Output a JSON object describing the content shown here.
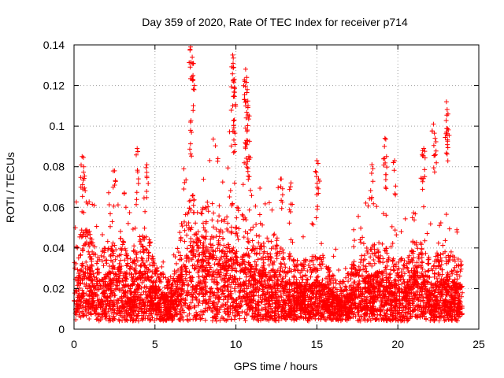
{
  "chart_data": {
    "type": "scatter",
    "title": "Day 359 of 2020, Rate Of TEC Index for receiver p714",
    "xlabel": "GPS time / hours",
    "ylabel": "ROTI / TECUs",
    "xlim": [
      0,
      25
    ],
    "ylim": [
      0,
      0.14
    ],
    "x_ticks": [
      0,
      5,
      10,
      15,
      20,
      25
    ],
    "x_tick_labels": [
      "0",
      "5",
      "10",
      "15",
      "20",
      "25"
    ],
    "y_ticks": [
      0,
      0.02,
      0.04,
      0.06,
      0.08,
      0.1,
      0.12,
      0.14
    ],
    "y_tick_labels": [
      "0",
      "0.02",
      "0.04",
      "0.06",
      "0.08",
      "0.1",
      "0.12",
      "0.14"
    ],
    "grid": true,
    "marker": "+",
    "marker_color": "#ff0000",
    "data_x_range": [
      0,
      24
    ],
    "envelope": {
      "hours": [
        0,
        0.5,
        1,
        1.5,
        2,
        2.5,
        3,
        3.5,
        4,
        4.5,
        5,
        5.5,
        6,
        6.5,
        7,
        7.5,
        8,
        8.5,
        9,
        9.5,
        10,
        10.5,
        11,
        11.5,
        12,
        12.5,
        13,
        13.5,
        14,
        14.5,
        15,
        15.5,
        16,
        16.5,
        17,
        17.5,
        18,
        18.5,
        19,
        19.5,
        20,
        20.5,
        21,
        21.5,
        22,
        22.5,
        23,
        23.5,
        24
      ],
      "typical_roti": [
        0.022,
        0.032,
        0.03,
        0.022,
        0.025,
        0.032,
        0.03,
        0.022,
        0.03,
        0.032,
        0.02,
        0.016,
        0.012,
        0.028,
        0.04,
        0.045,
        0.04,
        0.042,
        0.035,
        0.04,
        0.04,
        0.036,
        0.03,
        0.028,
        0.028,
        0.03,
        0.022,
        0.022,
        0.02,
        0.02,
        0.022,
        0.02,
        0.016,
        0.012,
        0.016,
        0.022,
        0.024,
        0.026,
        0.028,
        0.022,
        0.022,
        0.02,
        0.028,
        0.026,
        0.02,
        0.022,
        0.025,
        0.022,
        0.02
      ]
    },
    "peaks": [
      {
        "x": 0.5,
        "y": 0.085
      },
      {
        "x": 0.6,
        "y": 0.08
      },
      {
        "x": 2.5,
        "y": 0.078
      },
      {
        "x": 3.9,
        "y": 0.089
      },
      {
        "x": 4.5,
        "y": 0.081
      },
      {
        "x": 7.2,
        "y": 0.139
      },
      {
        "x": 7.3,
        "y": 0.134
      },
      {
        "x": 7.35,
        "y": 0.125
      },
      {
        "x": 7.2,
        "y": 0.102
      },
      {
        "x": 9.8,
        "y": 0.135
      },
      {
        "x": 9.85,
        "y": 0.129
      },
      {
        "x": 9.9,
        "y": 0.119
      },
      {
        "x": 9.8,
        "y": 0.11
      },
      {
        "x": 9.9,
        "y": 0.103
      },
      {
        "x": 10.6,
        "y": 0.128
      },
      {
        "x": 10.55,
        "y": 0.122
      },
      {
        "x": 10.7,
        "y": 0.118
      },
      {
        "x": 10.75,
        "y": 0.11
      },
      {
        "x": 10.6,
        "y": 0.099
      },
      {
        "x": 10.65,
        "y": 0.093
      },
      {
        "x": 10.8,
        "y": 0.085
      },
      {
        "x": 12.8,
        "y": 0.074
      },
      {
        "x": 13.4,
        "y": 0.072
      },
      {
        "x": 15.0,
        "y": 0.083
      },
      {
        "x": 15.1,
        "y": 0.074
      },
      {
        "x": 18.4,
        "y": 0.081
      },
      {
        "x": 19.2,
        "y": 0.094
      },
      {
        "x": 19.3,
        "y": 0.085
      },
      {
        "x": 19.8,
        "y": 0.083
      },
      {
        "x": 21.6,
        "y": 0.089
      },
      {
        "x": 21.5,
        "y": 0.086
      },
      {
        "x": 22.2,
        "y": 0.101
      },
      {
        "x": 22.3,
        "y": 0.094
      },
      {
        "x": 23.0,
        "y": 0.112
      },
      {
        "x": 23.1,
        "y": 0.106
      },
      {
        "x": 23.0,
        "y": 0.097
      }
    ],
    "random_seed": 359
  }
}
